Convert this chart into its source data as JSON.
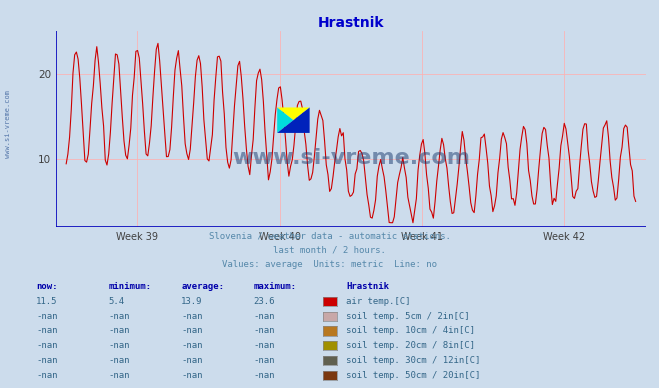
{
  "title": "Hrastnik",
  "title_color": "#0000cc",
  "bg_color": "#ccdcec",
  "plot_bg_color": "#ccdcec",
  "axis_color": "#0000bb",
  "grid_color": "#ffb0b0",
  "tick_label_color": "#404040",
  "x_tick_labels": [
    "Week 39",
    "Week 40",
    "Week 41",
    "Week 42"
  ],
  "y_ticks": [
    10,
    20
  ],
  "y_min": 2.0,
  "y_max": 25.0,
  "line_color": "#cc0000",
  "line_width": 0.8,
  "subtitle1": "Slovenia / weather data - automatic stations.",
  "subtitle2": "last month / 2 hours.",
  "subtitle3": "Values: average  Units: metric  Line: no",
  "subtitle_color": "#5588aa",
  "table_header_color": "#0000aa",
  "table_value_color": "#336688",
  "watermark": "www.si-vreme.com",
  "watermark_color": "#1a3a6e",
  "legend_items": [
    {
      "label": "air temp.[C]",
      "color": "#cc0000"
    },
    {
      "label": "soil temp. 5cm / 2in[C]",
      "color": "#c8a8a8"
    },
    {
      "label": "soil temp. 10cm / 4in[C]",
      "color": "#b87820"
    },
    {
      "label": "soil temp. 20cm / 8in[C]",
      "color": "#a09000"
    },
    {
      "label": "soil temp. 30cm / 12in[C]",
      "color": "#606050"
    },
    {
      "label": "soil temp. 50cm / 20in[C]",
      "color": "#7b3810"
    }
  ],
  "table_rows": [
    {
      "now": "11.5",
      "min": "5.4",
      "avg": "13.9",
      "max": "23.6"
    },
    {
      "now": "-nan",
      "min": "-nan",
      "avg": "-nan",
      "max": "-nan"
    },
    {
      "now": "-nan",
      "min": "-nan",
      "avg": "-nan",
      "max": "-nan"
    },
    {
      "now": "-nan",
      "min": "-nan",
      "avg": "-nan",
      "max": "-nan"
    },
    {
      "now": "-nan",
      "min": "-nan",
      "avg": "-nan",
      "max": "-nan"
    },
    {
      "now": "-nan",
      "min": "-nan",
      "avg": "-nan",
      "max": "-nan"
    }
  ]
}
